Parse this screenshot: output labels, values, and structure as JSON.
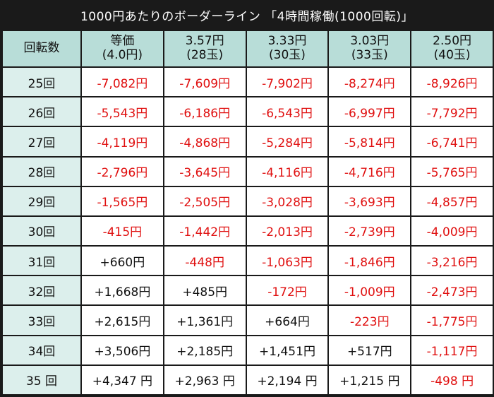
{
  "title": "1000円あたりのボーダーライン 「4時間稼働(1000回転)」",
  "header": {
    "row_label": "回転数",
    "columns": [
      {
        "line1": "等価",
        "line2": "(4.0円)"
      },
      {
        "line1": "3.57円",
        "line2": "(28玉)"
      },
      {
        "line1": "3.33円",
        "line2": "(30玉)"
      },
      {
        "line1": "3.03円",
        "line2": "(33玉)"
      },
      {
        "line1": "2.50円",
        "line2": "(40玉)"
      }
    ]
  },
  "rows": [
    {
      "rot": "25回",
      "cells": [
        "-7,082円",
        "-7,609円",
        "-7,902円",
        "-8,274円",
        "-8,926円"
      ]
    },
    {
      "rot": "26回",
      "cells": [
        "-5,543円",
        "-6,186円",
        "-6,543円",
        "-6,997円",
        "-7,792円"
      ]
    },
    {
      "rot": "27回",
      "cells": [
        "-4,119円",
        "-4,868円",
        "-5,284円",
        "-5,814円",
        "-6,741円"
      ]
    },
    {
      "rot": "28回",
      "cells": [
        "-2,796円",
        "-3,645円",
        "-4,116円",
        "-4,716円",
        "-5,765円"
      ]
    },
    {
      "rot": "29回",
      "cells": [
        "-1,565円",
        "-2,505円",
        "-3,028円",
        "-3,693円",
        "-4,857円"
      ]
    },
    {
      "rot": "30回",
      "cells": [
        "-415円",
        "-1,442円",
        "-2,013円",
        "-2,739円",
        "-4,009円"
      ]
    },
    {
      "rot": "31回",
      "cells": [
        "+660円",
        "-448円",
        "-1,063円",
        "-1,846円",
        "-3,216円"
      ]
    },
    {
      "rot": "32回",
      "cells": [
        "+1,668円",
        "+485円",
        "-172円",
        "-1,009円",
        "-2,473円"
      ]
    },
    {
      "rot": "33回",
      "cells": [
        "+2,615円",
        "+1,361円",
        "+664円",
        "-223円",
        "-1,775円"
      ]
    },
    {
      "rot": "34回",
      "cells": [
        "+3,506円",
        "+2,185円",
        "+1,451円",
        "+517円",
        "-1,117円"
      ]
    },
    {
      "rot": "35 回",
      "cells": [
        "+4,347 円",
        "+2,963 円",
        "+2,194 円",
        "+1,215 円",
        "-498 円"
      ]
    }
  ],
  "colors": {
    "negative": "#e01010",
    "positive": "#111111",
    "header_bg": "#b8ddd8",
    "row_label_bg": "#dcefec",
    "frame": "#1a1a1a"
  }
}
